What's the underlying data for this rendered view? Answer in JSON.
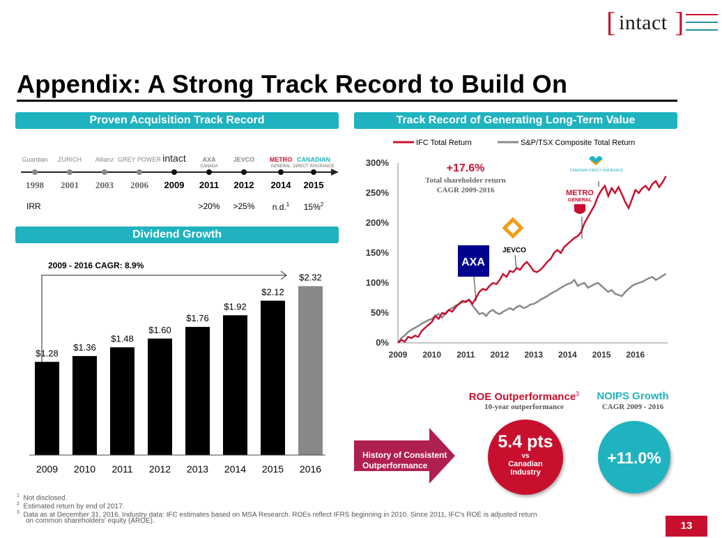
{
  "logo": {
    "word": "intact"
  },
  "title": "Appendix:  A Strong Track Record to Build On",
  "acquisition": {
    "header": "Proven Acquisition Track Record",
    "logos": [
      {
        "name": "Guardian",
        "sub": ""
      },
      {
        "name": "ZURICH",
        "sub": ""
      },
      {
        "name": "Allianz",
        "sub": ""
      },
      {
        "name": "GREY POWER",
        "sub": ""
      },
      {
        "name": "intact",
        "sub": ""
      },
      {
        "name": "AXA",
        "sub": "CANADA"
      },
      {
        "name": "JEVCO",
        "sub": ""
      },
      {
        "name": "METRO",
        "sub": "GENERAL"
      },
      {
        "name": "CANADIAN",
        "sub": "DIRECT INSURANCE"
      }
    ],
    "years": [
      "1998",
      "2001",
      "2003",
      "2006",
      "2009",
      "2011",
      "2012",
      "2014",
      "2015"
    ],
    "irr_label": "IRR",
    "irr_values": [
      "",
      "",
      "",
      "",
      "",
      ">20%",
      ">25%",
      "n.d.",
      "15%"
    ],
    "irr_sups": [
      "",
      "",
      "",
      "",
      "",
      "",
      "",
      "1",
      "2"
    ]
  },
  "dividend": {
    "header": "Dividend Growth",
    "cagr_label": "2009 - 2016 CAGR: 8.9%"
  },
  "longterm": {
    "header": "Track Record of Generating Long-Term Value",
    "legend_ifc": "IFC Total Return",
    "legend_tsx": "S&P/TSX Composite Total Return",
    "callout_pct": "+17.6%",
    "callout_line1": "Total shareholder return",
    "callout_line2": "CAGR 2009-2016",
    "acq_labels": {
      "axa": "AXA",
      "jevco": "JEVCO",
      "metro1": "METRO",
      "metro2": "GENERAL",
      "cdi": "CANADIAN DIRECT INSURANCE"
    }
  },
  "outperf": {
    "arrow_line1": "History of Consistent",
    "arrow_line2": "Outperformance",
    "roe_title": "ROE Outperformance",
    "roe_sup": "3",
    "roe_sub": "10-year outperformance",
    "roe_value": "5.4 pts",
    "roe_vs": "vs",
    "roe_line1": "Canadian",
    "roe_line2": "Industry",
    "noips_title": "NOIPS Growth",
    "noips_sub": "CAGR 2009 - 2016",
    "noips_value": "+11.0%"
  },
  "footnotes": [
    {
      "num": "1",
      "text": "Not disclosed."
    },
    {
      "num": "2",
      "text": "Estimated return by end of 2017."
    },
    {
      "num": "3",
      "text": "Data as at December 31, 2016. Industry data: IFC estimates based on MSA Research. ROEs reflect IFRS beginning in 2010. Since 2011, IFC's ROE is adjusted return"
    },
    {
      "num": "",
      "text": "on common shareholders' equity (AROE)."
    }
  ],
  "page_number": "13",
  "colors": {
    "teal": "#1fb2bf",
    "red": "#c8102e",
    "maroon": "#b0204e",
    "gray": "#888888",
    "black": "#000000"
  },
  "chart_data": [
    {
      "type": "bar",
      "title": "Dividend Growth",
      "categories": [
        "2009",
        "2010",
        "2011",
        "2012",
        "2013",
        "2014",
        "2015",
        "2016"
      ],
      "values": [
        1.28,
        1.36,
        1.48,
        1.6,
        1.76,
        1.92,
        2.12,
        2.32
      ],
      "labels": [
        "$1.28",
        "$1.36",
        "$1.48",
        "$1.60",
        "$1.76",
        "$1.92",
        "$2.12",
        "$2.32"
      ],
      "ylim": [
        0,
        2.45
      ],
      "colors": [
        "#000000",
        "#000000",
        "#000000",
        "#000000",
        "#000000",
        "#000000",
        "#000000",
        "#888888"
      ]
    },
    {
      "type": "line",
      "title": "Track Record of Generating Long-Term Value",
      "x_ticks": [
        "2009",
        "2010",
        "2011",
        "2012",
        "2013",
        "2014",
        "2015",
        "2016"
      ],
      "y_ticks": [
        "0%",
        "50%",
        "100%",
        "150%",
        "200%",
        "250%",
        "300%"
      ],
      "ylim": [
        0,
        300
      ],
      "xlim": [
        2009.0,
        2016.95
      ],
      "series": [
        {
          "name": "IFC Total Return",
          "color": "#c8102e",
          "x": [
            2009.0,
            2009.1,
            2009.2,
            2009.3,
            2009.4,
            2009.5,
            2009.6,
            2009.7,
            2009.8,
            2009.9,
            2010.0,
            2010.1,
            2010.2,
            2010.3,
            2010.4,
            2010.5,
            2010.6,
            2010.7,
            2010.8,
            2010.9,
            2011.0,
            2011.1,
            2011.2,
            2011.3,
            2011.4,
            2011.5,
            2011.6,
            2011.7,
            2011.8,
            2011.9,
            2012.0,
            2012.1,
            2012.2,
            2012.3,
            2012.4,
            2012.5,
            2012.6,
            2012.7,
            2012.8,
            2012.9,
            2013.0,
            2013.1,
            2013.2,
            2013.3,
            2013.4,
            2013.5,
            2013.6,
            2013.7,
            2013.8,
            2013.9,
            2014.0,
            2014.1,
            2014.2,
            2014.3,
            2014.4,
            2014.5,
            2014.6,
            2014.7,
            2014.8,
            2014.9,
            2015.0,
            2015.1,
            2015.2,
            2015.3,
            2015.4,
            2015.5,
            2015.6,
            2015.7,
            2015.8,
            2015.9,
            2016.0,
            2016.1,
            2016.2,
            2016.3,
            2016.4,
            2016.5,
            2016.6,
            2016.7,
            2016.8,
            2016.9
          ],
          "y": [
            0,
            5,
            2,
            10,
            8,
            12,
            10,
            20,
            25,
            30,
            35,
            45,
            40,
            50,
            48,
            55,
            52,
            60,
            65,
            70,
            68,
            72,
            65,
            75,
            85,
            90,
            88,
            95,
            100,
            98,
            105,
            115,
            110,
            120,
            118,
            125,
            122,
            130,
            135,
            128,
            120,
            118,
            122,
            128,
            135,
            140,
            150,
            155,
            150,
            160,
            165,
            170,
            175,
            178,
            185,
            200,
            210,
            220,
            230,
            245,
            255,
            262,
            245,
            258,
            250,
            260,
            248,
            235,
            225,
            240,
            255,
            250,
            258,
            262,
            255,
            265,
            270,
            260,
            268,
            278
          ]
        },
        {
          "name": "S&P/TSX Composite Total Return",
          "color": "#888888",
          "x": [
            2009.0,
            2009.1,
            2009.2,
            2009.3,
            2009.4,
            2009.5,
            2009.6,
            2009.7,
            2009.8,
            2009.9,
            2010.0,
            2010.1,
            2010.2,
            2010.3,
            2010.4,
            2010.5,
            2010.6,
            2010.7,
            2010.8,
            2010.9,
            2011.0,
            2011.1,
            2011.2,
            2011.3,
            2011.4,
            2011.5,
            2011.6,
            2011.7,
            2011.8,
            2011.9,
            2012.0,
            2012.1,
            2012.2,
            2012.3,
            2012.4,
            2012.5,
            2012.6,
            2012.7,
            2012.8,
            2012.9,
            2013.0,
            2013.1,
            2013.2,
            2013.3,
            2013.4,
            2013.5,
            2013.6,
            2013.7,
            2013.8,
            2013.9,
            2014.0,
            2014.1,
            2014.2,
            2014.3,
            2014.4,
            2014.5,
            2014.6,
            2014.7,
            2014.8,
            2014.9,
            2015.0,
            2015.1,
            2015.2,
            2015.3,
            2015.4,
            2015.5,
            2015.6,
            2015.7,
            2015.8,
            2015.9,
            2016.0,
            2016.1,
            2016.2,
            2016.3,
            2016.4,
            2016.5,
            2016.6,
            2016.7,
            2016.8,
            2016.9
          ],
          "y": [
            0,
            8,
            12,
            18,
            22,
            25,
            28,
            32,
            35,
            38,
            40,
            45,
            48,
            42,
            50,
            55,
            58,
            62,
            65,
            68,
            70,
            72,
            62,
            55,
            48,
            50,
            45,
            52,
            55,
            50,
            48,
            52,
            55,
            58,
            55,
            60,
            62,
            58,
            60,
            64,
            65,
            68,
            72,
            75,
            78,
            82,
            85,
            88,
            92,
            95,
            98,
            100,
            105,
            95,
            98,
            100,
            92,
            95,
            98,
            100,
            95,
            90,
            85,
            88,
            82,
            80,
            78,
            85,
            90,
            95,
            98,
            100,
            102,
            105,
            108,
            110,
            105,
            108,
            112,
            115
          ]
        }
      ]
    }
  ]
}
